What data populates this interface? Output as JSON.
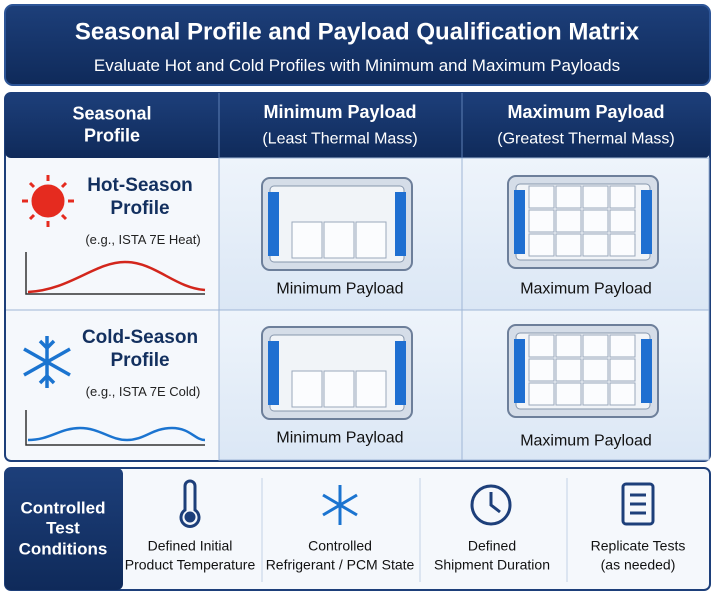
{
  "header": {
    "title": "Seasonal Profile and Payload Qualification Matrix",
    "subtitle": "Evaluate Hot and Cold Profiles with Minimum and Maximum Payloads"
  },
  "matrix": {
    "columns": [
      {
        "lines": [
          "Seasonal",
          "Profile"
        ]
      },
      {
        "title": "Minimum Payload",
        "subtitle": "(Least Thermal Mass)"
      },
      {
        "title": "Maximum Payload",
        "subtitle": "(Greatest Thermal Mass)"
      }
    ],
    "rows": [
      {
        "lines": [
          "Hot-Season",
          "Profile"
        ],
        "note": "(e.g., ISTA 7E Heat)",
        "cells": [
          "Minimum Payload",
          "Maximum Payload"
        ]
      },
      {
        "lines": [
          "Cold-Season",
          "Profile"
        ],
        "note": "(e.g., ISTA 7E Cold)",
        "cells": [
          "Minimum Payload",
          "Maximum Payload"
        ]
      }
    ]
  },
  "conditions": {
    "lines": [
      "Controlled",
      "Test",
      "Conditions"
    ],
    "items": [
      {
        "lines": [
          "Defined Initial",
          "Product Temperature"
        ]
      },
      {
        "lines": [
          "Controlled",
          "Refrigerant / PCM State"
        ]
      },
      {
        "lines": [
          "Defined",
          "Shipment Duration"
        ]
      },
      {
        "lines": [
          "Replicate Tests",
          "(as needed)"
        ]
      }
    ]
  }
}
